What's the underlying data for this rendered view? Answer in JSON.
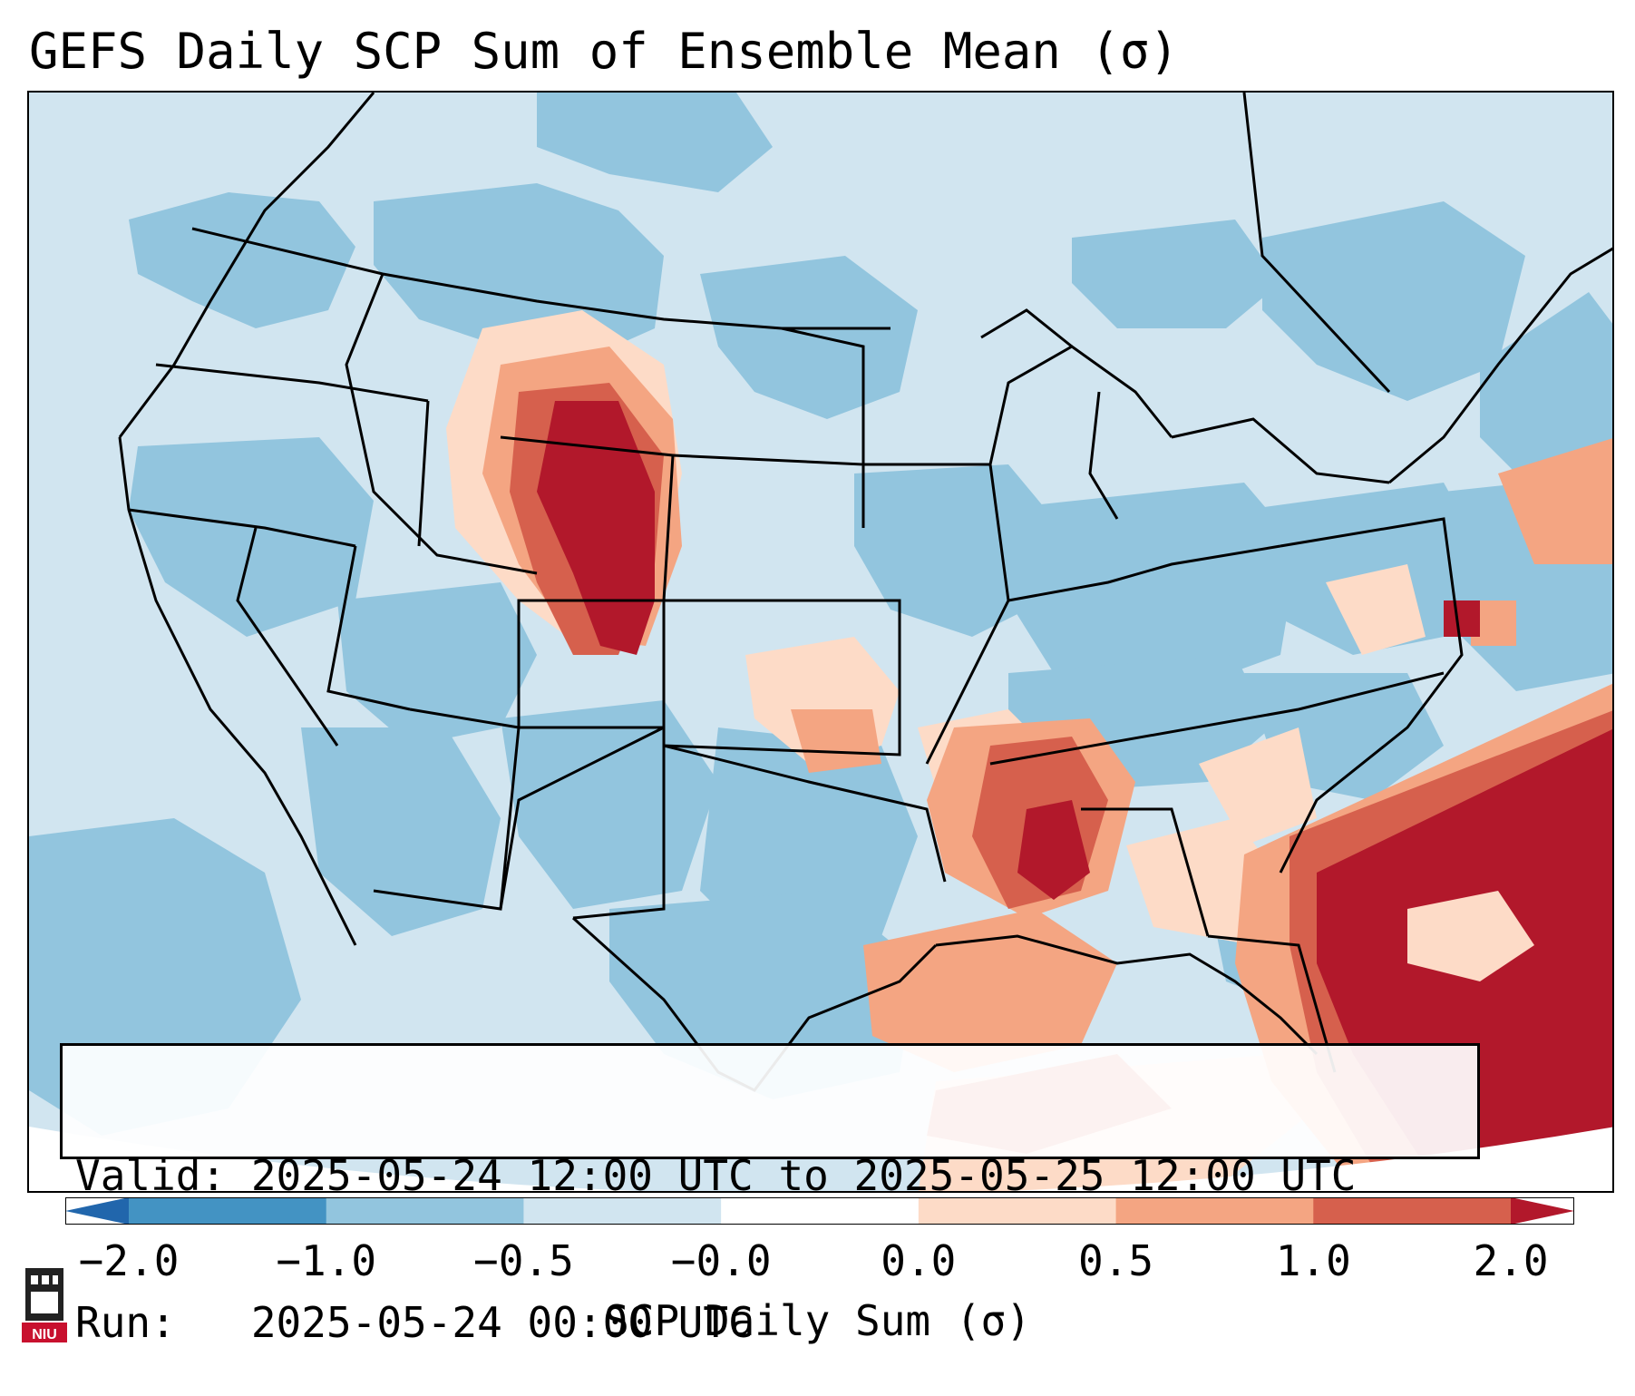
{
  "title": "GEFS Daily SCP Sum of Ensemble Mean (σ)",
  "info": {
    "valid_line": "Valid: 2025-05-24 12:00 UTC to 2025-05-25 12:00 UTC",
    "run_line": "Run:   2025-05-24 00:00 UTC"
  },
  "colorbar": {
    "label": "SCP Daily Sum (σ)",
    "ticks": [
      "−2.0",
      "−1.0",
      "−0.5",
      "−0.0",
      "0.0",
      "0.5",
      "1.0",
      "2.0"
    ],
    "colors": [
      "#4393c3",
      "#92c5de",
      "#d1e5f0",
      "#ffffff",
      "#fddbc7",
      "#f4a582",
      "#d6604d"
    ],
    "under_color": "#2166ac",
    "over_color": "#b2182b"
  },
  "logo": {
    "text": "NIU",
    "color": "#c8102e"
  },
  "map": {
    "field": [
      {
        "region": "colorado-front-range",
        "level": 2.0
      },
      {
        "region": "southern-wyoming",
        "level": 2.0
      },
      {
        "region": "lower-mississippi-valley",
        "level": 1.0
      },
      {
        "region": "western-atlantic-florida",
        "level": 2.0
      },
      {
        "region": "gulf-of-mexico",
        "level": 1.0
      },
      {
        "region": "western-conus",
        "level": -0.5
      }
    ]
  }
}
